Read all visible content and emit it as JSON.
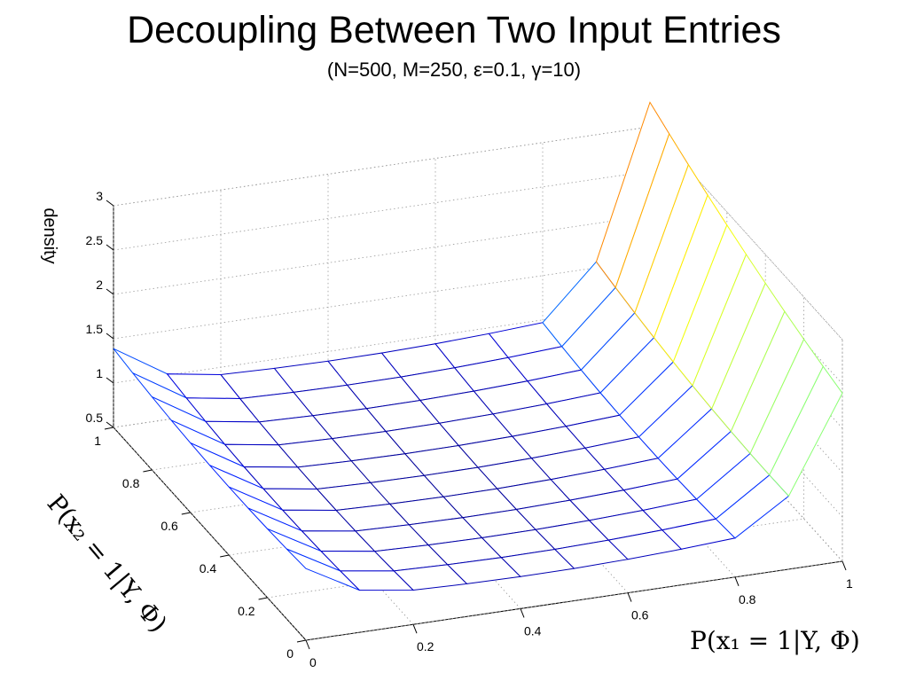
{
  "chart_data": {
    "type": "surface",
    "title": "Decoupling Between Two Input Entries",
    "subtitle": "(N=500, M=250, ε=0.1, γ=10)",
    "xlabel": "P(x₁ = 1|Y, Φ)",
    "ylabel": "P(x₂ = 1|Y, Φ)",
    "zlabel": "density",
    "xlim": [
      0,
      1
    ],
    "ylim": [
      0,
      1
    ],
    "zlim": [
      0.5,
      3
    ],
    "x_ticks": [
      "0",
      "0.2",
      "0.4",
      "0.6",
      "0.8",
      "1"
    ],
    "y_ticks": [
      "0",
      "0.2",
      "0.4",
      "0.6",
      "0.8",
      "1"
    ],
    "z_ticks": [
      "0.5",
      "1",
      "1.5",
      "2",
      "2.5",
      "3"
    ],
    "grid": true,
    "colormap": "jet",
    "style": "mesh",
    "surface_description": "density over (x1, y2) grid; near-flat bowl ~0.8-1.0 in interior, rising to ~1.25 along x1=0 edge and to ~2.2-3.0 along x1=1 edge"
  }
}
